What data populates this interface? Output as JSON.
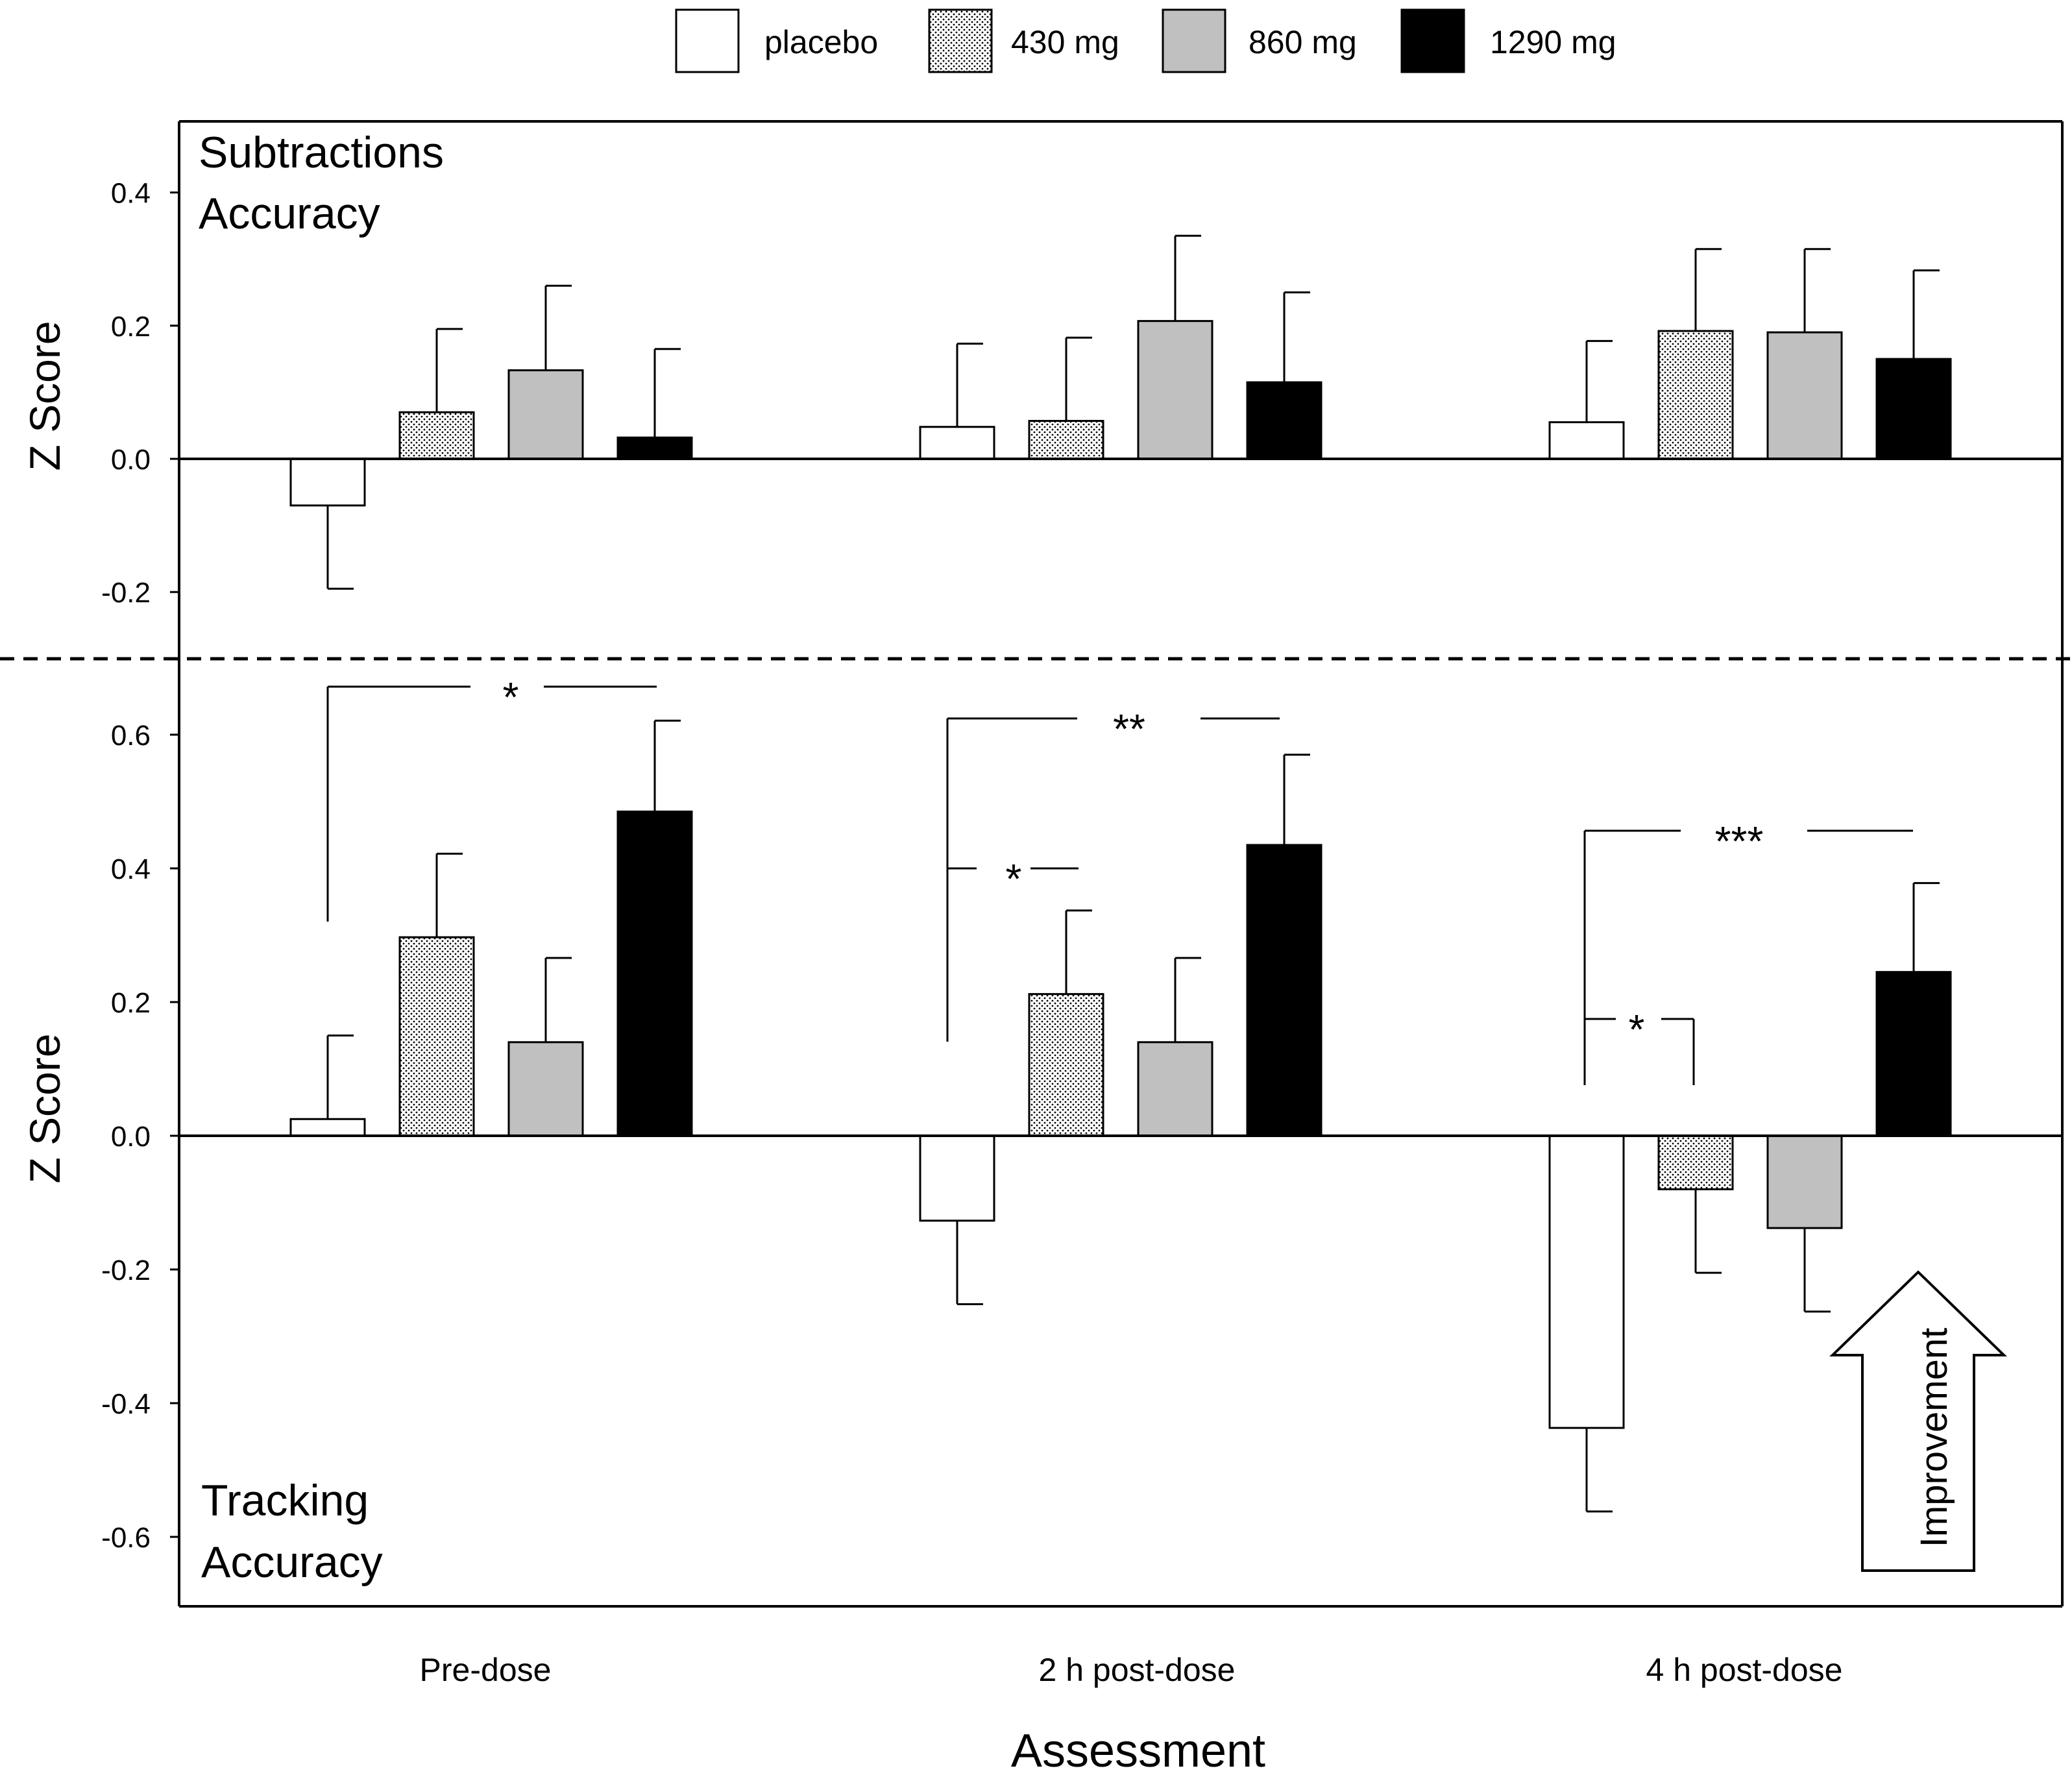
{
  "legend": [
    {
      "label": "placebo",
      "fill": "#ffffff",
      "pattern": "none"
    },
    {
      "label": "430 mg",
      "fill": "#ffffff",
      "pattern": "dots"
    },
    {
      "label": "860 mg",
      "fill": "#c0c0c0",
      "pattern": "none"
    },
    {
      "label": "1290 mg",
      "fill": "#000000",
      "pattern": "none"
    }
  ],
  "chart_data": [
    {
      "type": "bar",
      "title_line1": "Subtractions",
      "title_line2": "Accuracy",
      "ylabel": "Z Score",
      "ylim": [
        -0.3,
        0.5
      ],
      "yticks": [
        0.4,
        0.2,
        0.0,
        -0.2
      ],
      "ytick_labels": [
        "0.4",
        "0.2",
        "0.0",
        "-0.2"
      ],
      "categories": [
        "Pre-dose",
        "2 h post-dose",
        "4 h post-dose"
      ],
      "series": [
        {
          "name": "placebo",
          "values": [
            -0.07,
            0.048,
            0.055
          ],
          "errors": [
            0.125,
            0.125,
            0.122
          ]
        },
        {
          "name": "430 mg",
          "values": [
            0.07,
            0.057,
            0.192
          ],
          "errors": [
            0.125,
            0.125,
            0.123
          ]
        },
        {
          "name": "860 mg",
          "values": [
            0.133,
            0.207,
            0.19
          ],
          "errors": [
            0.127,
            0.128,
            0.125
          ]
        },
        {
          "name": "1290 mg",
          "values": [
            0.032,
            0.115,
            0.15
          ],
          "errors": [
            0.133,
            0.135,
            0.133
          ]
        }
      ]
    },
    {
      "type": "bar",
      "title_line1": "Tracking",
      "title_line2": "Accuracy",
      "ylabel": "Z Score",
      "ylim": [
        -0.7,
        0.72
      ],
      "yticks": [
        0.6,
        0.4,
        0.2,
        0.0,
        -0.2,
        -0.4,
        -0.6
      ],
      "ytick_labels": [
        "0.6",
        "0.4",
        "0.2",
        "0.0",
        "-0.2",
        "-0.4",
        "-0.6"
      ],
      "categories": [
        "Pre-dose",
        "2 h post-dose",
        "4 h post-dose"
      ],
      "series": [
        {
          "name": "placebo",
          "values": [
            0.025,
            -0.127,
            -0.437
          ],
          "errors": [
            0.125,
            0.125,
            0.125
          ]
        },
        {
          "name": "430 mg",
          "values": [
            0.297,
            0.212,
            -0.08
          ],
          "errors": [
            0.125,
            0.125,
            0.125
          ]
        },
        {
          "name": "860 mg",
          "values": [
            0.14,
            0.14,
            -0.138
          ],
          "errors": [
            0.126,
            0.126,
            0.125
          ]
        },
        {
          "name": "1290 mg",
          "values": [
            0.485,
            0.435,
            0.245
          ],
          "errors": [
            0.136,
            0.135,
            0.133
          ]
        }
      ],
      "annotations": [
        {
          "label": "*",
          "group": 0,
          "from": "placebo",
          "to": "1290 mg"
        },
        {
          "label": "**",
          "group": 1,
          "from": "placebo",
          "to": "1290 mg"
        },
        {
          "label": "*",
          "group": 1,
          "from": "placebo",
          "to": "430 mg"
        },
        {
          "label": "***",
          "group": 2,
          "from": "placebo",
          "to": "1290 mg"
        },
        {
          "label": "*",
          "group": 2,
          "from": "placebo",
          "to": "430 mg"
        }
      ],
      "arrow_label": "Improvement"
    }
  ],
  "xlabel": "Assessment"
}
